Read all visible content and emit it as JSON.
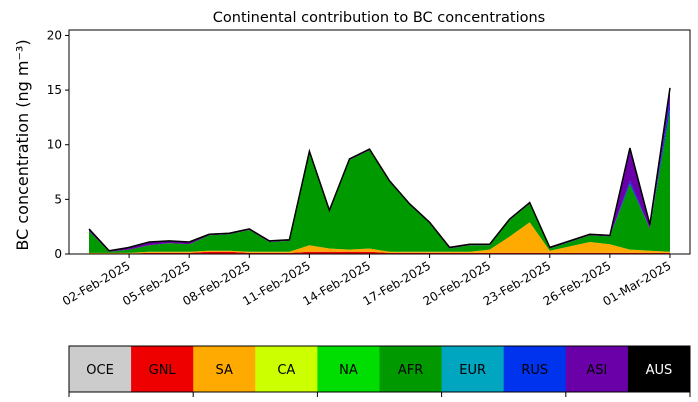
{
  "chart_data": {
    "type": "area",
    "title": "Continental contribution to BC concentrations",
    "ylabel": "BC concentration (ng m⁻³)",
    "xlabel": "",
    "ylim": [
      0,
      20.5
    ],
    "yticks": [
      0,
      5,
      10,
      15,
      20
    ],
    "x_start": "30-Jan-2025",
    "x_end": "02-Mar-2025",
    "xticks": [
      "02-Feb-2025",
      "05-Feb-2025",
      "08-Feb-2025",
      "11-Feb-2025",
      "14-Feb-2025",
      "17-Feb-2025",
      "20-Feb-2025",
      "23-Feb-2025",
      "26-Feb-2025",
      "01-Mar-2025"
    ],
    "x": [
      "31-Jan-2025",
      "01-Feb-2025",
      "02-Feb-2025",
      "03-Feb-2025",
      "04-Feb-2025",
      "05-Feb-2025",
      "06-Feb-2025",
      "07-Feb-2025",
      "08-Feb-2025",
      "09-Feb-2025",
      "10-Feb-2025",
      "11-Feb-2025",
      "12-Feb-2025",
      "13-Feb-2025",
      "14-Feb-2025",
      "15-Feb-2025",
      "16-Feb-2025",
      "17-Feb-2025",
      "18-Feb-2025",
      "19-Feb-2025",
      "20-Feb-2025",
      "21-Feb-2025",
      "22-Feb-2025",
      "23-Feb-2025",
      "24-Feb-2025",
      "25-Feb-2025",
      "26-Feb-2025",
      "27-Feb-2025",
      "28-Feb-2025",
      "01-Mar-2025"
    ],
    "series": [
      {
        "name": "OCE",
        "color": "#cccccc",
        "values": [
          0,
          0,
          0,
          0,
          0,
          0,
          0,
          0,
          0,
          0,
          0,
          0,
          0,
          0,
          0,
          0,
          0,
          0,
          0,
          0,
          0,
          0,
          0,
          0,
          0,
          0,
          0,
          0,
          0,
          0
        ]
      },
      {
        "name": "GNL",
        "color": "#ee0000",
        "values": [
          0.05,
          0.05,
          0.05,
          0.1,
          0.1,
          0.1,
          0.2,
          0.2,
          0.1,
          0.1,
          0.1,
          0.2,
          0.2,
          0.2,
          0.2,
          0.1,
          0.1,
          0.1,
          0.1,
          0.1,
          0.1,
          0.1,
          0.1,
          0.1,
          0.1,
          0.1,
          0.1,
          0.1,
          0.1,
          0.1
        ]
      },
      {
        "name": "SA",
        "color": "#ffaa00",
        "values": [
          0.05,
          0.05,
          0.05,
          0.1,
          0.1,
          0.1,
          0.1,
          0.1,
          0.1,
          0.1,
          0.1,
          0.6,
          0.3,
          0.2,
          0.3,
          0.1,
          0.1,
          0.1,
          0.1,
          0.1,
          0.3,
          1.5,
          2.8,
          0.2,
          0.6,
          1.0,
          0.8,
          0.3,
          0.2,
          0.1
        ]
      },
      {
        "name": "CA",
        "color": "#ccff00",
        "values": [
          0,
          0,
          0,
          0,
          0,
          0,
          0,
          0,
          0,
          0,
          0,
          0,
          0,
          0,
          0,
          0,
          0,
          0,
          0,
          0,
          0,
          0,
          0,
          0,
          0,
          0,
          0,
          0,
          0,
          0
        ]
      },
      {
        "name": "NA",
        "color": "#00dd00",
        "values": [
          0,
          0,
          0,
          0,
          0,
          0,
          0,
          0,
          0,
          0,
          0,
          0,
          0,
          0,
          0,
          0,
          0,
          0,
          0,
          0,
          0,
          0,
          0,
          0,
          0,
          0,
          0,
          0,
          0,
          0
        ]
      },
      {
        "name": "AFR",
        "color": "#009900",
        "values": [
          2.0,
          0.1,
          0.3,
          0.6,
          0.8,
          0.7,
          1.4,
          1.5,
          2.0,
          0.9,
          1.0,
          8.5,
          3.4,
          8.2,
          9.0,
          6.4,
          4.3,
          2.6,
          0.3,
          0.6,
          0.4,
          1.5,
          1.7,
          0.2,
          0.4,
          0.6,
          0.7,
          6.0,
          2.0,
          13.0
        ]
      },
      {
        "name": "EUR",
        "color": "#00a5c0",
        "values": [
          0,
          0,
          0,
          0,
          0,
          0,
          0,
          0,
          0,
          0,
          0,
          0,
          0,
          0,
          0,
          0,
          0,
          0,
          0,
          0,
          0,
          0,
          0,
          0,
          0,
          0,
          0,
          0,
          0,
          0
        ]
      },
      {
        "name": "RUS",
        "color": "#0033ee",
        "values": [
          0,
          0,
          0,
          0,
          0,
          0,
          0,
          0,
          0,
          0,
          0,
          0,
          0,
          0,
          0,
          0,
          0,
          0,
          0,
          0,
          0,
          0,
          0,
          0,
          0,
          0,
          0,
          0.3,
          0,
          0.8
        ]
      },
      {
        "name": "ASI",
        "color": "#6a00a8",
        "values": [
          0.2,
          0.1,
          0.2,
          0.3,
          0.2,
          0.2,
          0.1,
          0.1,
          0.1,
          0.1,
          0.1,
          0.1,
          0.1,
          0.1,
          0.1,
          0.1,
          0.1,
          0.1,
          0.1,
          0.1,
          0.1,
          0.1,
          0.1,
          0.1,
          0.1,
          0.1,
          0.1,
          3.0,
          0.4,
          1.2
        ]
      },
      {
        "name": "AUS",
        "color": "#000000",
        "values": [
          0,
          0,
          0,
          0,
          0,
          0,
          0,
          0,
          0,
          0,
          0,
          0,
          0,
          0,
          0,
          0,
          0,
          0,
          0,
          0,
          0,
          0,
          0,
          0,
          0,
          0,
          0,
          0,
          0,
          0
        ]
      }
    ],
    "legend_placement": "bottom",
    "grid": false
  }
}
